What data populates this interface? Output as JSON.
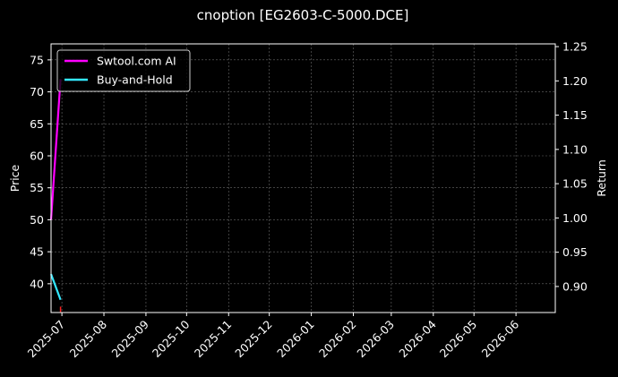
{
  "chart_data": {
    "type": "line",
    "title": "cnoption [EG2603-C-5000.DCE]",
    "ylabel_left": "Price",
    "ylabel_right": "Return",
    "x_ticks": [
      "2025-07",
      "2025-08",
      "2025-09",
      "2025-10",
      "2025-11",
      "2025-12",
      "2026-01",
      "2026-02",
      "2026-03",
      "2026-04",
      "2026-05",
      "2026-06"
    ],
    "xlim": [
      "2025-06-23",
      "2026-06-30"
    ],
    "ylim_left": [
      35.5,
      77.5
    ],
    "yticks_left": [
      40,
      45,
      50,
      55,
      60,
      65,
      70,
      75
    ],
    "ylim_right": [
      0.862,
      1.254
    ],
    "yticks_right": [
      0.9,
      0.95,
      1.0,
      1.05,
      1.1,
      1.15,
      1.2,
      1.25
    ],
    "ytick_labels_right": [
      "0.90",
      "0.95",
      "1.00",
      "1.05",
      "1.10",
      "1.15",
      "1.20",
      "1.25"
    ],
    "grid": true,
    "legend_placement": "top-left",
    "background": "#000000",
    "series": [
      {
        "name": "Swtool.com AI",
        "axis": "left",
        "color": "#ff00ff",
        "x": [
          "2025-06-23",
          "2025-06-30"
        ],
        "y": [
          50.0,
          72.0
        ]
      },
      {
        "name": "Buy-and-Hold",
        "axis": "left",
        "color": "#33e8ff",
        "x": [
          "2025-06-23",
          "2025-06-30"
        ],
        "y": [
          41.5,
          37.5
        ]
      }
    ],
    "markers": [
      {
        "x": "2025-06-30",
        "y": 36.0,
        "color": "#ff2020",
        "axis": "left"
      }
    ]
  }
}
